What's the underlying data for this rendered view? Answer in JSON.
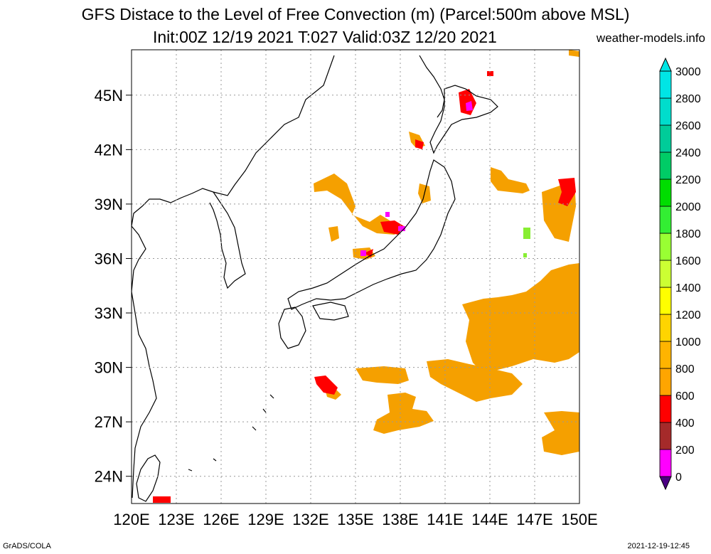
{
  "title_line1": "GFS Distace to the Level of Free Convection (m) (Parcel:500m above MSL)",
  "title_line2": "Init:00Z 12/19 2021 T:027 Valid:03Z 12/20 2021",
  "website": "weather-models.info",
  "footer_left": "GrADS/COLA",
  "footer_right": "2021-12-19-12:45",
  "map": {
    "lon_range": [
      120,
      150
    ],
    "lat_range": [
      22.5,
      47.5
    ],
    "lon_ticks": [
      "120E",
      "123E",
      "126E",
      "129E",
      "132E",
      "135E",
      "138E",
      "141E",
      "144E",
      "147E",
      "150E"
    ],
    "lat_ticks": [
      "24N",
      "27N",
      "30N",
      "33N",
      "36N",
      "39N",
      "42N",
      "45N"
    ],
    "grid": true
  },
  "colorbar": {
    "labels": [
      "0",
      "200",
      "400",
      "600",
      "800",
      "1000",
      "1200",
      "1400",
      "1600",
      "1800",
      "2000",
      "2200",
      "2400",
      "2600",
      "2800",
      "3000"
    ],
    "colors": [
      "#4b0082",
      "#ff00ff",
      "#a52a2a",
      "#ff0000",
      "#ffa500",
      "#ffb400",
      "#ffd400",
      "#ffff00",
      "#ccff33",
      "#99ff33",
      "#33ee33",
      "#00dd00",
      "#00cc66",
      "#00cc99",
      "#00ddcc",
      "#00e5e5"
    ]
  }
}
